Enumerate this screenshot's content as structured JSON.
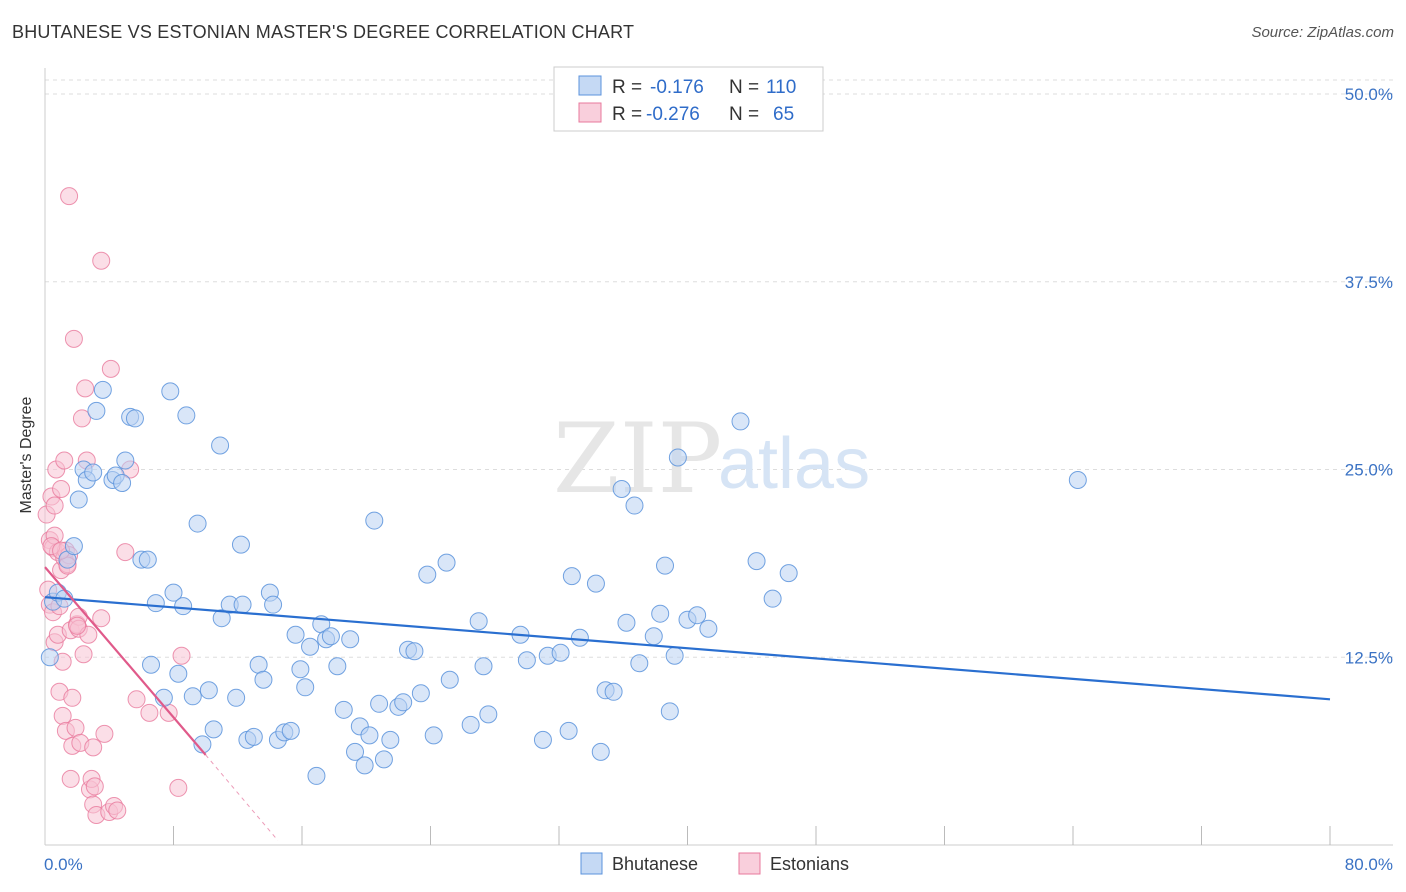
{
  "title": "BHUTANESE VS ESTONIAN MASTER'S DEGREE CORRELATION CHART",
  "source": "Source: ZipAtlas.com",
  "watermark": {
    "zip": "ZIP",
    "atlas": "atlas"
  },
  "colors": {
    "bhutanese": "#5b93dc",
    "bhutanese_fill": "#b9d1f2",
    "estonians": "#e8799c",
    "estonians_fill": "#f7c3d4",
    "blue_line": "#2a6fd0",
    "pink_line": "#e05a8a",
    "grid": "#dddddd",
    "tick": "#3a72c4"
  },
  "legend": {
    "rows": [
      {
        "r_label": "R =",
        "r_value": "-0.176",
        "n_label": "N =",
        "n_value": "110"
      },
      {
        "r_label": "R =",
        "r_value": "-0.276",
        "n_label": "N =",
        "n_value": "65"
      }
    ]
  },
  "bottom_legend": [
    "Bhutanese",
    "Estonians"
  ],
  "chart_data": {
    "type": "scatter",
    "xlabel": "",
    "ylabel": "Master's Degree",
    "xlim": [
      0,
      80
    ],
    "ylim": [
      0,
      50
    ],
    "x_tick_labels": [
      "0.0%",
      "80.0%"
    ],
    "y_tick_labels": [
      "12.5%",
      "25.0%",
      "37.5%",
      "50.0%"
    ],
    "y_ticks": [
      12.5,
      25.0,
      37.5,
      50.0
    ],
    "series": [
      {
        "name": "Bhutanese",
        "R": -0.176,
        "N": 110,
        "trend": {
          "x0": 0.0,
          "y0": 16.5,
          "x1": 80.0,
          "y1": 9.7
        },
        "points": [
          [
            0.3,
            12.5
          ],
          [
            0.5,
            16.2
          ],
          [
            0.8,
            16.8
          ],
          [
            1.2,
            16.4
          ],
          [
            1.4,
            19.0
          ],
          [
            1.8,
            19.9
          ],
          [
            2.1,
            23.0
          ],
          [
            2.4,
            25.0
          ],
          [
            2.6,
            24.3
          ],
          [
            3.0,
            24.8
          ],
          [
            3.2,
            28.9
          ],
          [
            3.6,
            30.3
          ],
          [
            4.2,
            24.3
          ],
          [
            4.4,
            24.6
          ],
          [
            4.8,
            24.1
          ],
          [
            5.0,
            25.6
          ],
          [
            5.3,
            28.5
          ],
          [
            5.6,
            28.4
          ],
          [
            6.0,
            19.0
          ],
          [
            6.4,
            19.0
          ],
          [
            6.6,
            12.0
          ],
          [
            6.9,
            16.1
          ],
          [
            7.4,
            9.8
          ],
          [
            7.8,
            30.2
          ],
          [
            8.0,
            16.8
          ],
          [
            8.3,
            11.4
          ],
          [
            8.6,
            15.9
          ],
          [
            8.8,
            28.6
          ],
          [
            9.2,
            9.9
          ],
          [
            9.5,
            21.4
          ],
          [
            9.8,
            6.7
          ],
          [
            10.2,
            10.3
          ],
          [
            10.5,
            7.7
          ],
          [
            10.9,
            26.6
          ],
          [
            11.0,
            15.1
          ],
          [
            11.5,
            16.0
          ],
          [
            11.9,
            9.8
          ],
          [
            12.2,
            20.0
          ],
          [
            12.6,
            7.0
          ],
          [
            13.0,
            7.2
          ],
          [
            13.3,
            12.0
          ],
          [
            13.6,
            11.0
          ],
          [
            14.0,
            16.8
          ],
          [
            14.2,
            16.0
          ],
          [
            14.5,
            7.0
          ],
          [
            14.9,
            7.5
          ],
          [
            15.3,
            7.6
          ],
          [
            15.6,
            14.0
          ],
          [
            15.9,
            11.7
          ],
          [
            16.2,
            10.5
          ],
          [
            16.5,
            13.2
          ],
          [
            16.9,
            4.6
          ],
          [
            17.2,
            14.7
          ],
          [
            17.5,
            13.7
          ],
          [
            17.8,
            13.9
          ],
          [
            18.2,
            11.9
          ],
          [
            18.6,
            9.0
          ],
          [
            19.0,
            13.7
          ],
          [
            19.3,
            6.2
          ],
          [
            19.6,
            7.9
          ],
          [
            19.9,
            5.3
          ],
          [
            20.2,
            7.3
          ],
          [
            20.5,
            21.6
          ],
          [
            20.8,
            9.4
          ],
          [
            21.1,
            5.7
          ],
          [
            21.5,
            7.0
          ],
          [
            22.0,
            9.2
          ],
          [
            22.3,
            9.5
          ],
          [
            22.6,
            13.0
          ],
          [
            23.0,
            12.9
          ],
          [
            23.4,
            10.1
          ],
          [
            23.8,
            18.0
          ],
          [
            24.2,
            7.3
          ],
          [
            25.0,
            18.8
          ],
          [
            25.2,
            11.0
          ],
          [
            26.5,
            8.0
          ],
          [
            27.0,
            14.9
          ],
          [
            27.3,
            11.9
          ],
          [
            27.6,
            8.7
          ],
          [
            29.6,
            14.0
          ],
          [
            30.0,
            12.3
          ],
          [
            31.0,
            7.0
          ],
          [
            31.3,
            12.6
          ],
          [
            32.1,
            12.8
          ],
          [
            32.6,
            7.6
          ],
          [
            32.8,
            17.9
          ],
          [
            33.3,
            13.8
          ],
          [
            34.3,
            17.4
          ],
          [
            34.6,
            6.2
          ],
          [
            34.9,
            10.3
          ],
          [
            35.4,
            10.2
          ],
          [
            35.9,
            23.7
          ],
          [
            36.2,
            14.8
          ],
          [
            36.7,
            22.6
          ],
          [
            37.0,
            12.1
          ],
          [
            37.9,
            13.9
          ],
          [
            38.3,
            15.4
          ],
          [
            38.6,
            18.6
          ],
          [
            38.9,
            8.9
          ],
          [
            39.2,
            12.6
          ],
          [
            40.0,
            15.0
          ],
          [
            40.6,
            15.3
          ],
          [
            41.3,
            14.4
          ],
          [
            43.3,
            28.2
          ],
          [
            44.3,
            18.9
          ],
          [
            45.3,
            16.4
          ],
          [
            46.3,
            18.1
          ],
          [
            64.3,
            24.3
          ],
          [
            39.4,
            25.8
          ],
          [
            12.3,
            16.0
          ]
        ]
      },
      {
        "name": "Estonians",
        "R": -0.276,
        "N": 65,
        "trend": {
          "x0": 0.0,
          "y0": 18.5,
          "x1": 10.0,
          "y1": 6.0
        },
        "trend_extension": {
          "x0": 10.0,
          "y0": 6.0,
          "x1": 14.5,
          "y1": 0.3
        },
        "points": [
          [
            0.1,
            22.0
          ],
          [
            0.2,
            17.0
          ],
          [
            0.3,
            20.3
          ],
          [
            0.3,
            16.0
          ],
          [
            0.4,
            23.2
          ],
          [
            0.5,
            19.8
          ],
          [
            0.5,
            15.5
          ],
          [
            0.6,
            22.6
          ],
          [
            0.6,
            20.6
          ],
          [
            0.6,
            13.5
          ],
          [
            0.7,
            25.0
          ],
          [
            0.8,
            19.5
          ],
          [
            0.8,
            14.0
          ],
          [
            0.9,
            10.2
          ],
          [
            1.0,
            23.7
          ],
          [
            1.0,
            18.3
          ],
          [
            1.1,
            12.2
          ],
          [
            1.1,
            8.6
          ],
          [
            1.2,
            25.6
          ],
          [
            1.2,
            19.1
          ],
          [
            1.3,
            7.6
          ],
          [
            1.3,
            19.6
          ],
          [
            1.4,
            18.7
          ],
          [
            1.5,
            19.3
          ],
          [
            1.5,
            43.2
          ],
          [
            1.6,
            14.3
          ],
          [
            1.6,
            4.4
          ],
          [
            1.7,
            6.6
          ],
          [
            1.7,
            9.8
          ],
          [
            1.8,
            33.7
          ],
          [
            1.9,
            7.8
          ],
          [
            2.0,
            14.7
          ],
          [
            2.1,
            15.2
          ],
          [
            2.1,
            14.4
          ],
          [
            2.2,
            6.8
          ],
          [
            2.3,
            28.4
          ],
          [
            2.4,
            12.7
          ],
          [
            2.5,
            30.4
          ],
          [
            2.6,
            25.6
          ],
          [
            2.7,
            14.0
          ],
          [
            2.8,
            3.7
          ],
          [
            2.9,
            4.4
          ],
          [
            3.0,
            6.5
          ],
          [
            3.0,
            2.7
          ],
          [
            3.1,
            3.9
          ],
          [
            3.2,
            2.0
          ],
          [
            3.5,
            15.1
          ],
          [
            3.5,
            38.9
          ],
          [
            3.7,
            7.4
          ],
          [
            4.0,
            2.2
          ],
          [
            4.1,
            31.7
          ],
          [
            4.3,
            2.6
          ],
          [
            4.5,
            2.3
          ],
          [
            5.0,
            19.5
          ],
          [
            5.3,
            25.0
          ],
          [
            5.7,
            9.7
          ],
          [
            6.5,
            8.8
          ],
          [
            7.7,
            8.8
          ],
          [
            8.3,
            3.8
          ],
          [
            8.5,
            12.6
          ],
          [
            0.4,
            19.9
          ],
          [
            1.4,
            18.6
          ],
          [
            0.9,
            15.9
          ],
          [
            2.0,
            14.6
          ],
          [
            1.0,
            19.6
          ]
        ]
      }
    ]
  }
}
